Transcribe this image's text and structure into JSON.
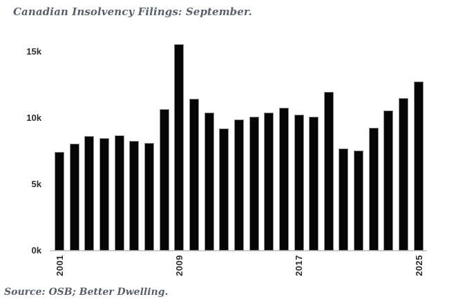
{
  "title": "Canadian Insolvency Filings: September.",
  "source": "Source: OSB; Better Dwelling.",
  "colors": {
    "bar_fill": "#060606",
    "bar_border": "#909090",
    "axis_line": "#cfcfcf",
    "tick_text": "#2d2d2d",
    "title_text": "#59606a",
    "background": "#ffffff"
  },
  "chart_data": {
    "type": "bar",
    "title": "Canadian Insolvency Filings: September.",
    "xlabel": "",
    "ylabel": "",
    "categories": [
      2001,
      2002,
      2003,
      2004,
      2005,
      2006,
      2007,
      2008,
      2009,
      2010,
      2011,
      2012,
      2013,
      2014,
      2015,
      2016,
      2017,
      2018,
      2019,
      2020,
      2021,
      2022,
      2023,
      2024,
      2025
    ],
    "values": [
      7450,
      8050,
      8650,
      8500,
      8700,
      8300,
      8150,
      10700,
      15550,
      11450,
      10400,
      9200,
      9900,
      10100,
      10400,
      10800,
      10250,
      10100,
      12000,
      7700,
      7550,
      9250,
      10600,
      11500,
      12750
    ],
    "x_tick_labels": [
      "2001",
      "2009",
      "2017",
      "2025"
    ],
    "y_tick_labels": [
      "0k",
      "5k",
      "10k",
      "15k"
    ],
    "y_tick_values": [
      0,
      5000,
      10000,
      15000
    ],
    "ylim": [
      0,
      16000
    ],
    "grid": false,
    "legend": false,
    "bar_color": "#060606",
    "annotations": []
  }
}
